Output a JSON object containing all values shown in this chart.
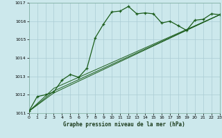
{
  "bg_color": "#cce8ec",
  "grid_color": "#aaccd4",
  "line_color": "#1a5c1a",
  "title": "Graphe pression niveau de la mer (hPa)",
  "xlim": [
    0,
    23
  ],
  "ylim": [
    1011,
    1017
  ],
  "yticks": [
    1011,
    1012,
    1013,
    1014,
    1015,
    1016,
    1017
  ],
  "xticks": [
    0,
    1,
    2,
    3,
    4,
    5,
    6,
    7,
    8,
    9,
    10,
    11,
    12,
    13,
    14,
    15,
    16,
    17,
    18,
    19,
    20,
    21,
    22,
    23
  ],
  "series1_x": [
    0,
    1,
    2,
    3,
    4,
    5,
    6,
    7,
    8,
    9,
    10,
    11,
    12,
    13,
    14,
    15,
    16,
    17,
    18,
    19,
    20,
    21,
    22,
    23
  ],
  "series1_y": [
    1011.1,
    1011.9,
    1012.0,
    1012.15,
    1012.8,
    1013.1,
    1012.95,
    1013.45,
    1015.1,
    1015.85,
    1016.5,
    1016.55,
    1016.8,
    1016.4,
    1016.45,
    1016.4,
    1015.9,
    1016.0,
    1015.75,
    1015.5,
    1016.05,
    1016.1,
    1016.4,
    1016.35
  ],
  "series2_x": [
    0,
    3,
    23
  ],
  "series2_y": [
    1011.1,
    1012.35,
    1016.35
  ],
  "series3_x": [
    0,
    3,
    23
  ],
  "series3_y": [
    1011.1,
    1012.2,
    1016.35
  ],
  "series4_x": [
    0,
    3,
    23
  ],
  "series4_y": [
    1011.1,
    1012.1,
    1016.35
  ]
}
